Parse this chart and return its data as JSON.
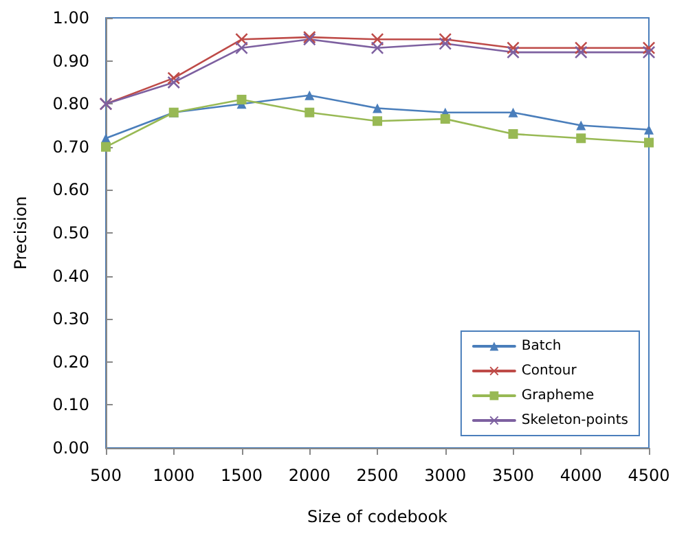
{
  "chart_data": {
    "type": "line",
    "xlabel": "Size of codebook",
    "ylabel": "Precision",
    "categories": [
      "500",
      "1000",
      "1500",
      "2000",
      "2500",
      "3000",
      "3500",
      "4000",
      "4500"
    ],
    "series": [
      {
        "name": "Batch",
        "color": "#4a7ebb",
        "marker": "triangle",
        "values": [
          0.72,
          0.78,
          0.8,
          0.82,
          0.79,
          0.78,
          0.78,
          0.75,
          0.74
        ]
      },
      {
        "name": "Contour",
        "color": "#be4b48",
        "marker": "cross",
        "values": [
          0.8,
          0.86,
          0.95,
          0.955,
          0.95,
          0.95,
          0.93,
          0.93,
          0.93
        ]
      },
      {
        "name": "Grapheme",
        "color": "#98b954",
        "marker": "square",
        "values": [
          0.7,
          0.78,
          0.81,
          0.78,
          0.76,
          0.765,
          0.73,
          0.72,
          0.71
        ]
      },
      {
        "name": "Skeleton-points",
        "color": "#7d60a0",
        "marker": "cross",
        "values": [
          0.8,
          0.85,
          0.93,
          0.95,
          0.93,
          0.94,
          0.92,
          0.92,
          0.92
        ]
      }
    ],
    "ylim": [
      0,
      1
    ],
    "yticks": [
      {
        "value": 0,
        "label": "0.00"
      },
      {
        "value": 0.1,
        "label": "0.10"
      },
      {
        "value": 0.2,
        "label": "0.20"
      },
      {
        "value": 0.3,
        "label": "0.30"
      },
      {
        "value": 0.4,
        "label": "0.40"
      },
      {
        "value": 0.5,
        "label": "0.50"
      },
      {
        "value": 0.6,
        "label": "0.60"
      },
      {
        "value": 0.7,
        "label": "0.70"
      },
      {
        "value": 0.8,
        "label": "0.80"
      },
      {
        "value": 0.9,
        "label": "0.90"
      },
      {
        "value": 1.0,
        "label": "1.00"
      }
    ],
    "grid": false,
    "legend": "bottom right",
    "line_style": "solid"
  }
}
